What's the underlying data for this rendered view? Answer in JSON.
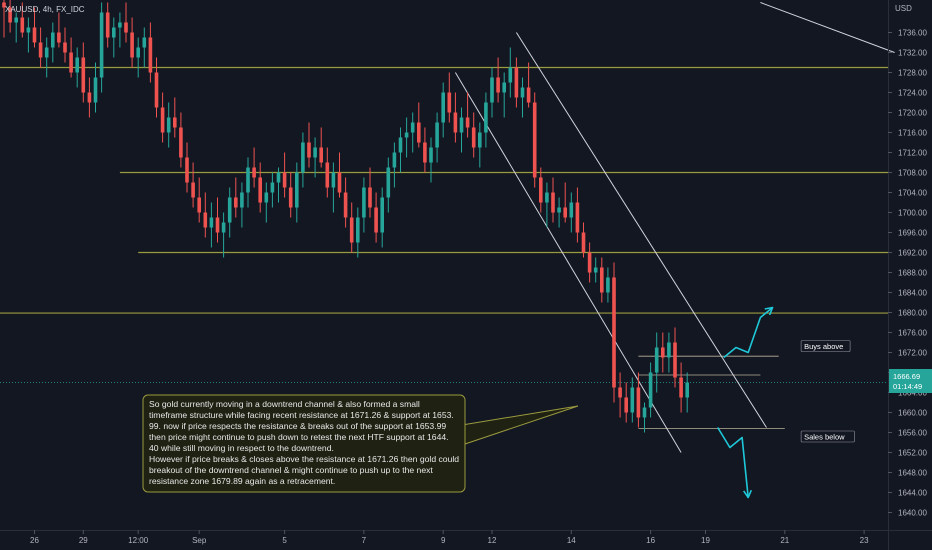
{
  "header": {
    "symbol": "XAUUSD, 4h, FX_IDC"
  },
  "price_axis": {
    "unit": "USD",
    "current_price": "1666.69",
    "countdown": "01:14:49"
  },
  "colors": {
    "background": "#131722",
    "bull": "#26a69a",
    "bear": "#ef5350",
    "level": "#9a9a3e",
    "trend": "#d1d4dc",
    "arrow": "#1ec8d8"
  },
  "chart_data": {
    "type": "candlestick",
    "y_ticks": [
      1640,
      1644,
      1648,
      1652,
      1656,
      1660,
      1664,
      1668,
      1672,
      1676,
      1680,
      1684,
      1688,
      1692,
      1696,
      1700,
      1704,
      1708,
      1712,
      1716,
      1720,
      1724,
      1728,
      1732,
      1736
    ],
    "y_tick_labels": [
      "1640.00",
      "1644.00",
      "1648.00",
      "1652.00",
      "1656.00",
      "1660.00",
      "1664.00",
      "1668.00",
      "1672.00",
      "1676.00",
      "1680.00",
      "1684.00",
      "1688.00",
      "1692.00",
      "1696.00",
      "1700.00",
      "1704.00",
      "1708.00",
      "1712.00",
      "1716.00",
      "1720.00",
      "1724.00",
      "1728.00",
      "1732.00",
      "1736.00"
    ],
    "ylim": [
      1636.5,
      1742.5
    ],
    "x_ticks": [
      {
        "label": "26",
        "i": 5
      },
      {
        "label": "29",
        "i": 13
      },
      {
        "label": "12:00",
        "i": 22
      },
      {
        "label": "Sep",
        "i": 32
      },
      {
        "label": "5",
        "i": 46
      },
      {
        "label": "7",
        "i": 59
      },
      {
        "label": "9",
        "i": 72
      },
      {
        "label": "12",
        "i": 80
      },
      {
        "label": "14",
        "i": 93
      },
      {
        "label": "16",
        "i": 106
      },
      {
        "label": "19",
        "i": 115
      },
      {
        "label": "21",
        "i": 128
      },
      {
        "label": "23",
        "i": 141
      }
    ],
    "candles": [
      [
        1742,
        1744,
        1735,
        1741
      ],
      [
        1741,
        1743,
        1736,
        1738
      ],
      [
        1738,
        1740,
        1734,
        1739
      ],
      [
        1739,
        1742,
        1735,
        1736
      ],
      [
        1736,
        1739,
        1732,
        1737
      ],
      [
        1737,
        1741,
        1733,
        1734
      ],
      [
        1734,
        1737,
        1729,
        1731
      ],
      [
        1731,
        1735,
        1727,
        1733
      ],
      [
        1733,
        1738,
        1730,
        1736
      ],
      [
        1736,
        1740,
        1733,
        1734
      ],
      [
        1734,
        1737,
        1730,
        1732
      ],
      [
        1732,
        1735,
        1727,
        1728
      ],
      [
        1728,
        1733,
        1725,
        1731
      ],
      [
        1731,
        1734,
        1722,
        1724
      ],
      [
        1724,
        1727,
        1719,
        1722
      ],
      [
        1722,
        1730,
        1720,
        1727
      ],
      [
        1727,
        1742,
        1724,
        1740
      ],
      [
        1740,
        1742,
        1733,
        1735
      ],
      [
        1735,
        1739,
        1731,
        1737
      ],
      [
        1737,
        1740,
        1733,
        1738
      ],
      [
        1738,
        1742,
        1734,
        1736
      ],
      [
        1736,
        1739,
        1729,
        1731
      ],
      [
        1731,
        1735,
        1727,
        1733
      ],
      [
        1733,
        1737,
        1729,
        1735
      ],
      [
        1735,
        1738,
        1726,
        1728
      ],
      [
        1728,
        1731,
        1719,
        1721
      ],
      [
        1721,
        1724,
        1714,
        1716
      ],
      [
        1716,
        1722,
        1713,
        1719
      ],
      [
        1719,
        1723,
        1715,
        1717
      ],
      [
        1717,
        1720,
        1709,
        1711
      ],
      [
        1711,
        1714,
        1704,
        1706
      ],
      [
        1706,
        1710,
        1701,
        1703
      ],
      [
        1703,
        1707,
        1698,
        1700
      ],
      [
        1700,
        1704,
        1695,
        1697
      ],
      [
        1697,
        1702,
        1693,
        1699
      ],
      [
        1699,
        1703,
        1694,
        1696
      ],
      [
        1696,
        1700,
        1691,
        1698
      ],
      [
        1698,
        1705,
        1695,
        1703
      ],
      [
        1703,
        1707,
        1699,
        1701
      ],
      [
        1701,
        1706,
        1697,
        1704
      ],
      [
        1704,
        1711,
        1701,
        1709
      ],
      [
        1709,
        1713,
        1705,
        1707
      ],
      [
        1707,
        1710,
        1700,
        1702
      ],
      [
        1702,
        1706,
        1698,
        1704
      ],
      [
        1704,
        1708,
        1701,
        1706
      ],
      [
        1706,
        1709,
        1702,
        1708
      ],
      [
        1708,
        1712,
        1703,
        1705
      ],
      [
        1705,
        1708,
        1699,
        1701
      ],
      [
        1701,
        1710,
        1698,
        1708
      ],
      [
        1708,
        1716,
        1705,
        1714
      ],
      [
        1714,
        1718,
        1709,
        1711
      ],
      [
        1711,
        1715,
        1707,
        1713
      ],
      [
        1713,
        1717,
        1709,
        1710
      ],
      [
        1710,
        1713,
        1703,
        1705
      ],
      [
        1705,
        1710,
        1700,
        1708
      ],
      [
        1708,
        1712,
        1703,
        1704
      ],
      [
        1704,
        1707,
        1697,
        1699
      ],
      [
        1699,
        1702,
        1692,
        1694
      ],
      [
        1694,
        1701,
        1691,
        1699
      ],
      [
        1699,
        1707,
        1696,
        1705
      ],
      [
        1705,
        1709,
        1699,
        1701
      ],
      [
        1701,
        1704,
        1694,
        1696
      ],
      [
        1696,
        1705,
        1693,
        1703
      ],
      [
        1703,
        1711,
        1700,
        1709
      ],
      [
        1709,
        1714,
        1705,
        1712
      ],
      [
        1712,
        1717,
        1708,
        1715
      ],
      [
        1715,
        1719,
        1711,
        1716
      ],
      [
        1716,
        1720,
        1712,
        1718
      ],
      [
        1718,
        1722,
        1713,
        1714
      ],
      [
        1714,
        1717,
        1708,
        1710
      ],
      [
        1710,
        1715,
        1706,
        1713
      ],
      [
        1713,
        1720,
        1710,
        1718
      ],
      [
        1718,
        1726,
        1715,
        1724
      ],
      [
        1724,
        1728,
        1718,
        1720
      ],
      [
        1720,
        1724,
        1714,
        1716
      ],
      [
        1716,
        1721,
        1712,
        1719
      ],
      [
        1719,
        1724,
        1715,
        1717
      ],
      [
        1717,
        1720,
        1711,
        1713
      ],
      [
        1713,
        1718,
        1709,
        1716
      ],
      [
        1716,
        1724,
        1713,
        1722
      ],
      [
        1722,
        1729,
        1719,
        1727
      ],
      [
        1727,
        1731,
        1722,
        1724
      ],
      [
        1724,
        1728,
        1719,
        1726
      ],
      [
        1726,
        1733,
        1723,
        1729
      ],
      [
        1729,
        1731,
        1721,
        1723
      ],
      [
        1723,
        1727,
        1719,
        1725
      ],
      [
        1725,
        1730,
        1721,
        1722
      ],
      [
        1722,
        1724,
        1705,
        1707
      ],
      [
        1707,
        1709,
        1700,
        1702
      ],
      [
        1702,
        1706,
        1697,
        1704
      ],
      [
        1704,
        1707,
        1698,
        1700
      ],
      [
        1700,
        1703,
        1697,
        1701
      ],
      [
        1701,
        1706,
        1698,
        1699
      ],
      [
        1699,
        1704,
        1696,
        1702
      ],
      [
        1702,
        1705,
        1694,
        1696
      ],
      [
        1696,
        1698,
        1691,
        1692
      ],
      [
        1692,
        1694,
        1686,
        1688
      ],
      [
        1688,
        1691,
        1686,
        1689
      ],
      [
        1689,
        1691,
        1682,
        1684
      ],
      [
        1684,
        1689,
        1682,
        1687
      ],
      [
        1687,
        1690,
        1662,
        1665
      ],
      [
        1665,
        1668,
        1659,
        1663
      ],
      [
        1663,
        1666,
        1658,
        1660
      ],
      [
        1660,
        1667,
        1658,
        1665
      ],
      [
        1665,
        1668,
        1657,
        1659
      ],
      [
        1659,
        1662,
        1656,
        1661
      ],
      [
        1661,
        1670,
        1659,
        1668
      ],
      [
        1668,
        1676,
        1664,
        1673
      ],
      [
        1673,
        1676,
        1668,
        1671
      ],
      [
        1671,
        1676,
        1668,
        1674
      ],
      [
        1674,
        1677,
        1665,
        1667
      ],
      [
        1667,
        1670,
        1660,
        1663
      ],
      [
        1663,
        1668,
        1660,
        1666
      ]
    ],
    "levels": [
      {
        "price": 1729,
        "from_i": 0
      },
      {
        "price": 1708,
        "from_i": 19
      },
      {
        "price": 1692,
        "from_i": 22
      },
      {
        "price": 1679.89,
        "from_i": 0
      }
    ],
    "zone_lines": [
      {
        "price": 1671.26,
        "from_i": 104,
        "to_i": 127
      },
      {
        "price": 1667.5,
        "from_i": 104,
        "to_i": 124
      },
      {
        "price": 1656.8,
        "from_i": 104,
        "to_i": 128
      }
    ],
    "channel": [
      {
        "from": [
          84,
          1736
        ],
        "to": [
          125,
          1657
        ]
      },
      {
        "from": [
          74,
          1728
        ],
        "to": [
          111,
          1652
        ]
      }
    ],
    "top_right_line": {
      "from": [
        124,
        1742
      ],
      "to": [
        146,
        1732
      ]
    },
    "arrow_up": {
      "points": [
        [
          118,
          1671
        ],
        [
          120,
          1673
        ],
        [
          122,
          1672
        ],
        [
          124,
          1679
        ],
        [
          126,
          1681
        ]
      ]
    },
    "arrow_down": {
      "points": [
        [
          117,
          1657
        ],
        [
          119,
          1653
        ],
        [
          121,
          1655
        ],
        [
          122,
          1643
        ]
      ]
    },
    "labels": [
      {
        "text": "Buys above",
        "i": 131,
        "price": 1673
      },
      {
        "text": "Sales below",
        "i": 131,
        "price": 1654.9
      }
    ],
    "annotation": {
      "lines": [
        "So gold currently moving in a downtrend channel & also formed a small",
        "timeframe structure while facing recent resistance at 1671.26 & support at 1653.",
        "99. now if price respects the resistance & breaks out of the support at 1653.99",
        "then price might continue to push down to retest the next HTF support at 1644.",
        "40 while still moving in respect to the downtrend.",
        "However if price breaks & closes above the resistance at 1671.26 then gold could",
        "breakout of the downtrend channel & might continue to push up to the next",
        "resistance zone 1679.89 again as a retracement."
      ]
    }
  }
}
